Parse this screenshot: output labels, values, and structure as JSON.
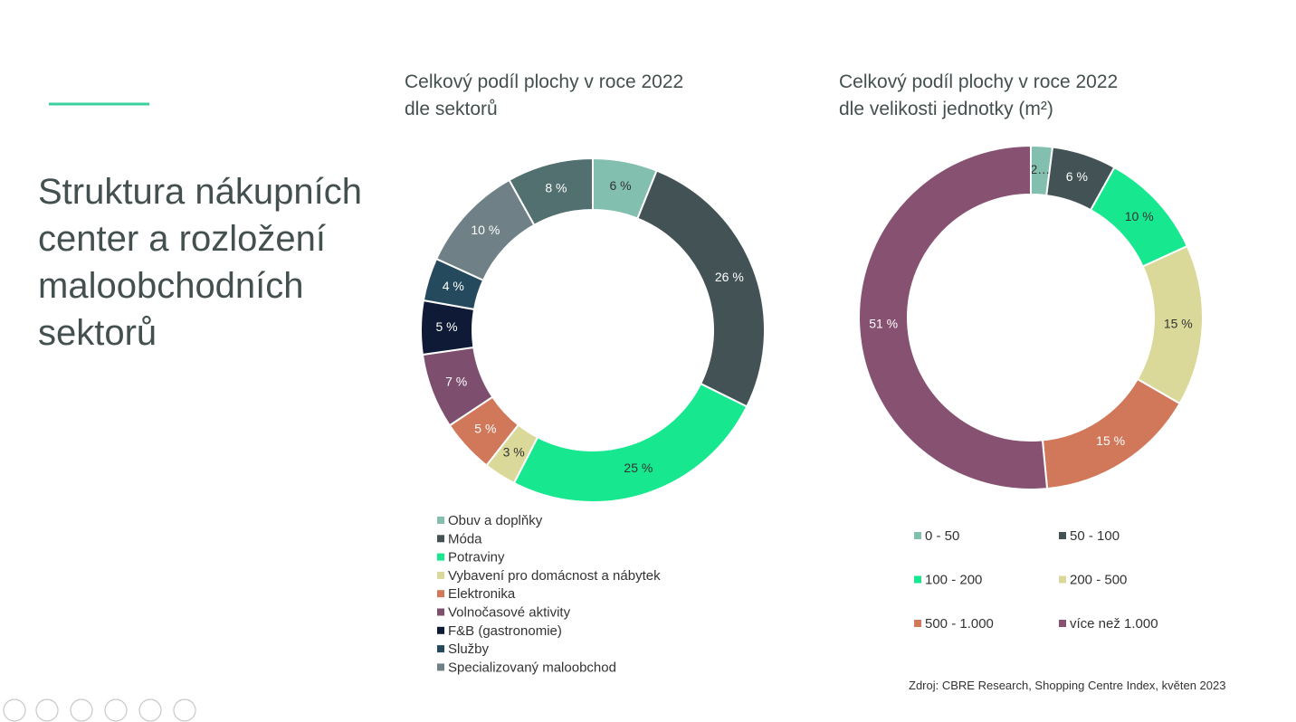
{
  "slide": {
    "title": "Struktura nákupních center a rozložení maloobchodních sektorů",
    "source": "Zdroj: CBRE Research, Shopping Centre Index, květen 2023"
  },
  "chart_data": [
    {
      "type": "pie",
      "title": "Celkový podíl plochy v roce 2022 dle sektorů",
      "categories": [
        "Obuv a doplňky",
        "Móda",
        "Potraviny",
        "Vybavení pro domácnost a nábytek",
        "Elektronika",
        "Volnočasové aktivity",
        "F&B (gastronomie)",
        "Služby",
        "Specializovaný maloobchod",
        null
      ],
      "values": [
        6,
        26,
        25,
        3,
        5,
        7,
        5,
        4,
        10,
        8
      ],
      "value_labels": [
        "6 %",
        "26 %",
        "25 %",
        "3 %",
        "5 %",
        "7 %",
        "5 %",
        "4 %",
        "10 %",
        "8 %"
      ],
      "colors": [
        "#82bfae",
        "#435254",
        "#17e88f",
        "#dbd99a",
        "#d1785a",
        "#7e4e6f",
        "#0f1b36",
        "#254a5e",
        "#6f8187",
        "#51706f"
      ]
    },
    {
      "type": "pie",
      "title": "Celkový podíl plochy v roce 2022 dle velikosti jednotky (m²)",
      "categories": [
        "0 - 50",
        "50 - 100",
        "100 - 200",
        "200 - 500",
        "500 - 1.000",
        "více než 1.000"
      ],
      "values": [
        2,
        6,
        10,
        15,
        15,
        51
      ],
      "value_labels": [
        "2…",
        "6 %",
        "10 %",
        "15 %",
        "15 %",
        "51 %"
      ],
      "colors": [
        "#82bfae",
        "#435254",
        "#17e88f",
        "#dbd99a",
        "#d1785a",
        "#875171"
      ]
    }
  ]
}
